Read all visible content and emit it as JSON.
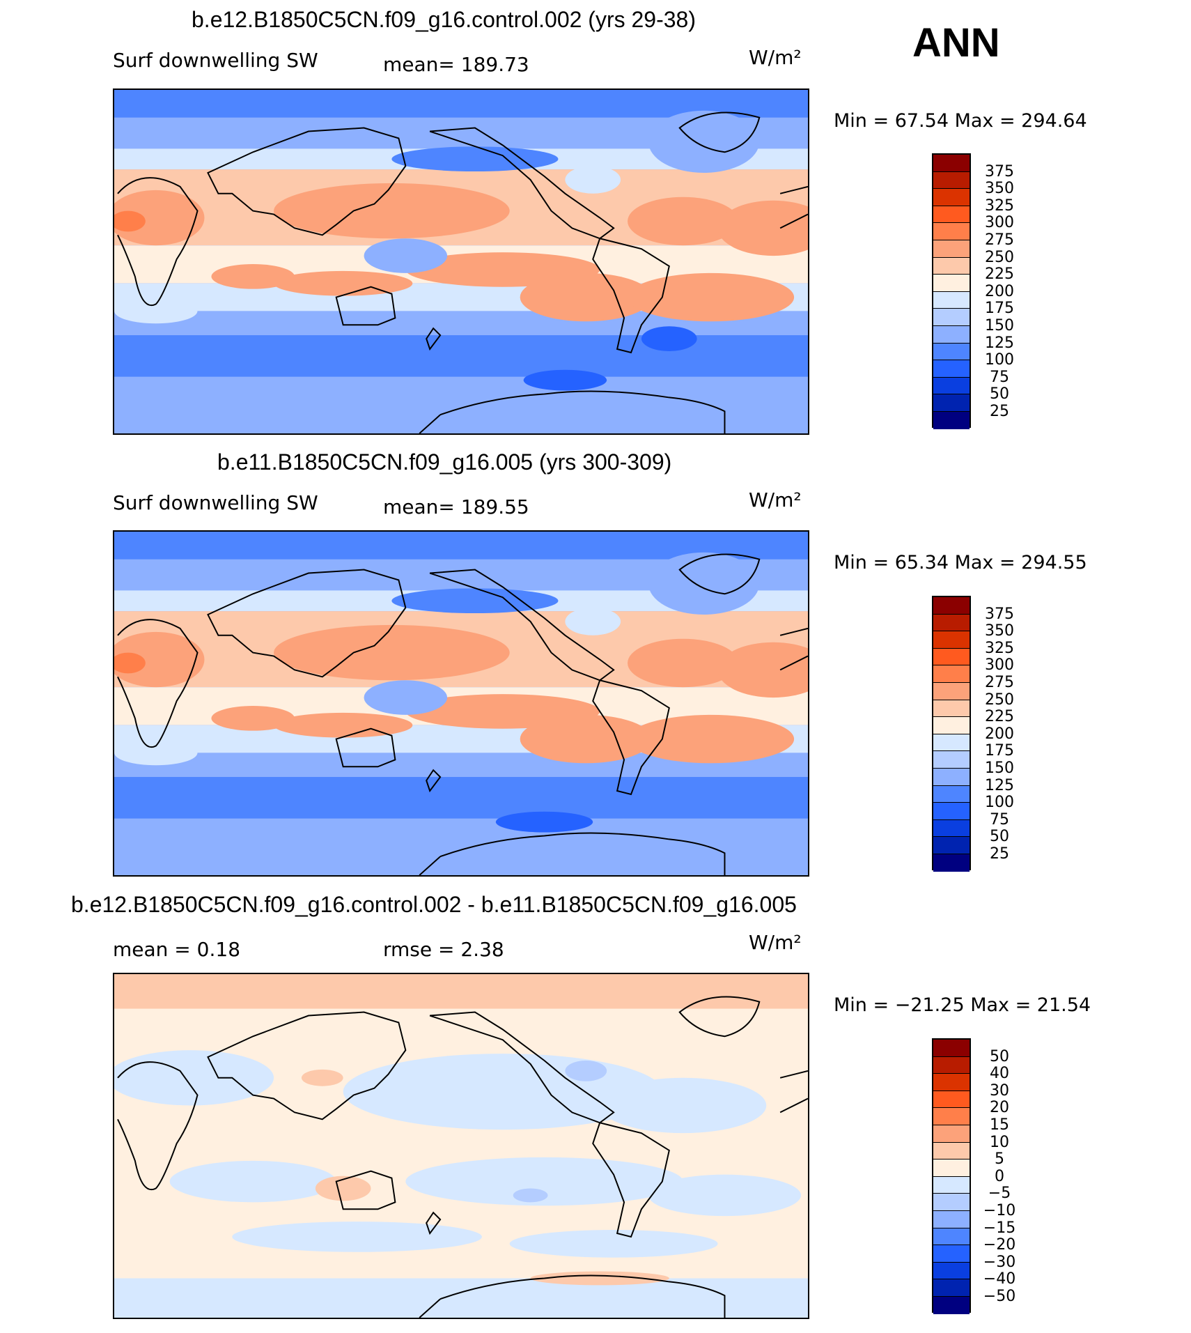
{
  "season": "ANN",
  "panels": [
    {
      "title": "b.e12.B1850C5CN.f09_g16.control.002 (yrs 29-38)",
      "left_text": "Surf downwelling SW",
      "mid_text": "mean=  189.73",
      "units": "W/m²",
      "minmax": "Min =   67.54  Max  =  294.64"
    },
    {
      "title": "b.e11.B1850C5CN.f09_g16.005 (yrs 300-309)",
      "left_text": "Surf downwelling SW",
      "mid_text": "mean=  189.55",
      "units": "W/m²",
      "minmax": "Min =   65.34  Max  =  294.55"
    },
    {
      "title": "b.e12.B1850C5CN.f09_g16.control.002 - b.e11.B1850C5CN.f09_g16.005",
      "left_text": "mean =     0.18",
      "mid_text": "rmse =     2.38",
      "units": "W/m²",
      "minmax": "Min  =  −21.25  Max  =    21.54"
    }
  ],
  "colorbars": {
    "absolute": {
      "labels": [
        "375",
        "350",
        "325",
        "300",
        "275",
        "250",
        "225",
        "200",
        "175",
        "150",
        "125",
        "100",
        "75",
        "50",
        "25"
      ],
      "colors": [
        "#8b0000",
        "#b81c00",
        "#db3300",
        "#ff5a1f",
        "#ff7f4a",
        "#fca27a",
        "#fdc9ab",
        "#fff0e0",
        "#d6e8ff",
        "#b4cdff",
        "#8db0ff",
        "#4e85ff",
        "#2562ff",
        "#0a3fe0",
        "#0023b0",
        "#000080"
      ]
    },
    "difference": {
      "labels": [
        "50",
        "40",
        "30",
        "20",
        "15",
        "10",
        "5",
        "0",
        "−5",
        "−10",
        "−15",
        "−20",
        "−30",
        "−40",
        "−50"
      ],
      "colors": [
        "#8b0000",
        "#b81c00",
        "#db3300",
        "#ff5a1f",
        "#ff7f4a",
        "#fca27a",
        "#fdc9ab",
        "#fff0e0",
        "#d6e8ff",
        "#b4cdff",
        "#8db0ff",
        "#4e85ff",
        "#2562ff",
        "#0a3fe0",
        "#0023b0",
        "#000080"
      ]
    }
  }
}
